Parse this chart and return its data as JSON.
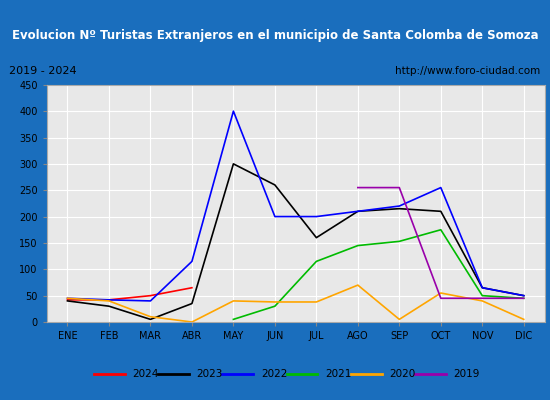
{
  "title": "Evolucion Nº Turistas Extranjeros en el municipio de Santa Colomba de Somoza",
  "subtitle_left": "2019 - 2024",
  "subtitle_right": "http://www.foro-ciudad.com",
  "months": [
    "ENE",
    "FEB",
    "MAR",
    "ABR",
    "MAY",
    "JUN",
    "JUL",
    "AGO",
    "SEP",
    "OCT",
    "NOV",
    "DIC"
  ],
  "series": {
    "2024": {
      "color": "#ff0000",
      "data": [
        42,
        42,
        50,
        65,
        null,
        null,
        null,
        null,
        null,
        null,
        null,
        null
      ]
    },
    "2023": {
      "color": "#000000",
      "data": [
        40,
        30,
        5,
        35,
        300,
        260,
        160,
        210,
        215,
        210,
        65,
        50
      ]
    },
    "2022": {
      "color": "#0000ff",
      "data": [
        45,
        42,
        40,
        115,
        400,
        200,
        200,
        210,
        220,
        255,
        65,
        50
      ]
    },
    "2021": {
      "color": "#00bb00",
      "data": [
        null,
        null,
        null,
        null,
        5,
        30,
        115,
        145,
        153,
        175,
        50,
        45
      ]
    },
    "2020": {
      "color": "#ffa500",
      "data": [
        45,
        40,
        10,
        0,
        40,
        38,
        38,
        70,
        5,
        55,
        40,
        5
      ]
    },
    "2019": {
      "color": "#9900aa",
      "data": [
        null,
        null,
        null,
        null,
        null,
        null,
        null,
        255,
        255,
        45,
        45,
        45
      ]
    }
  },
  "ylim": [
    0,
    450
  ],
  "yticks": [
    0,
    50,
    100,
    150,
    200,
    250,
    300,
    350,
    400,
    450
  ],
  "bg_title": "#1a6ebd",
  "bg_subtitle": "#e8e8e8",
  "bg_plot": "#e8e8e8",
  "grid_color": "#ffffff",
  "title_color": "#ffffff",
  "border_color": "#1a6ebd",
  "legend_entries": [
    [
      "2024",
      "#ff0000"
    ],
    [
      "2023",
      "#000000"
    ],
    [
      "2022",
      "#0000ff"
    ],
    [
      "2021",
      "#00bb00"
    ],
    [
      "2020",
      "#ffa500"
    ],
    [
      "2019",
      "#9900aa"
    ]
  ]
}
